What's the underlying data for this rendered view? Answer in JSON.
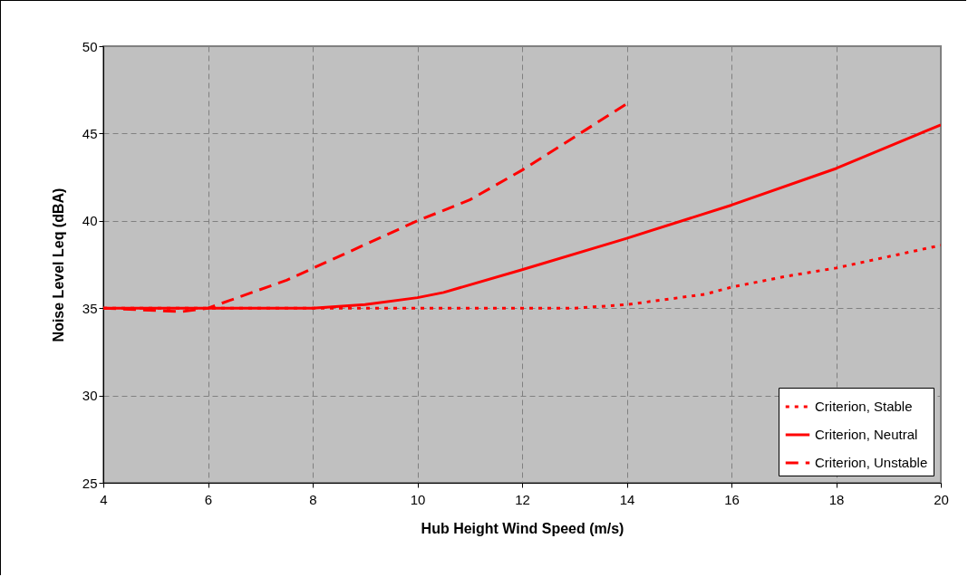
{
  "chart_data": {
    "type": "line",
    "xlabel": "Hub Height Wind Speed (m/s)",
    "ylabel": "Noise Level Leq (dBA)",
    "xlim": [
      4,
      20
    ],
    "xticks": [
      4,
      6,
      8,
      10,
      12,
      14,
      16,
      18,
      20
    ],
    "ylim": [
      25,
      50
    ],
    "yticks": [
      25,
      30,
      35,
      40,
      45,
      50
    ],
    "grid": true,
    "legend": "bottom right",
    "marker": "none",
    "series": [
      {
        "name": "Criterion, Stable",
        "color": "#ff0000",
        "line_style": "dotted",
        "x": [
          4,
          6,
          8,
          10,
          12,
          13,
          14,
          15,
          15.5,
          16,
          17,
          18,
          20
        ],
        "values": [
          35,
          35,
          35,
          35,
          35,
          35,
          35.2,
          35.6,
          35.8,
          36.2,
          36.8,
          37.3,
          38.6
        ]
      },
      {
        "name": "Criterion, Neutral",
        "color": "#ff0000",
        "line_style": "solid",
        "x": [
          4,
          6,
          8,
          9,
          10,
          10.5,
          12,
          14,
          16,
          18,
          20
        ],
        "values": [
          35,
          35,
          35,
          35.2,
          35.6,
          35.9,
          37.2,
          39.0,
          40.9,
          43.0,
          45.5
        ]
      },
      {
        "name": "Criterion, Unstable",
        "color": "#ff0000",
        "line_style": "dashed",
        "x": [
          4,
          5.5,
          6,
          7.5,
          10,
          11,
          12,
          14
        ],
        "values": [
          35,
          34.8,
          35,
          36.6,
          40.0,
          41.2,
          42.9,
          46.7
        ]
      }
    ]
  }
}
